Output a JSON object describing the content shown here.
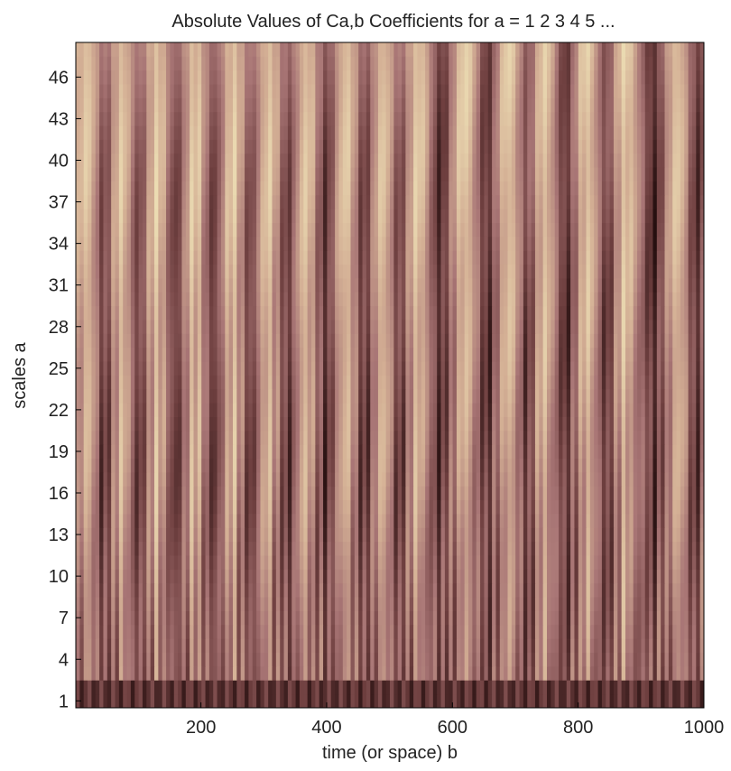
{
  "chart_data": {
    "type": "heatmap",
    "title": "Absolute Values of Ca,b Coefficients for a =  1 2 3 4 5 ...",
    "xlabel": "time (or space) b",
    "ylabel": "scales a",
    "xlim": [
      1,
      1000
    ],
    "ylim": [
      1,
      48
    ],
    "x_ticks": [
      200,
      400,
      600,
      800,
      1000
    ],
    "y_ticks": [
      1,
      4,
      7,
      10,
      13,
      16,
      19,
      22,
      25,
      28,
      31,
      34,
      37,
      40,
      43,
      46
    ],
    "colormap": "pink",
    "colormap_stops": [
      "#1e0a0a",
      "#6e3f3f",
      "#a87575",
      "#d4b095",
      "#f0e4b8"
    ],
    "grid": false,
    "legend": "none",
    "bright_ridge_positions_b": [
      20,
      75,
      130,
      190,
      250,
      305,
      365,
      430,
      490,
      545,
      620,
      690,
      745,
      815,
      875,
      960
    ],
    "dark_ridge_positions_b": [
      45,
      100,
      160,
      220,
      280,
      340,
      400,
      460,
      515,
      580,
      655,
      720,
      780,
      845,
      920,
      985
    ]
  }
}
